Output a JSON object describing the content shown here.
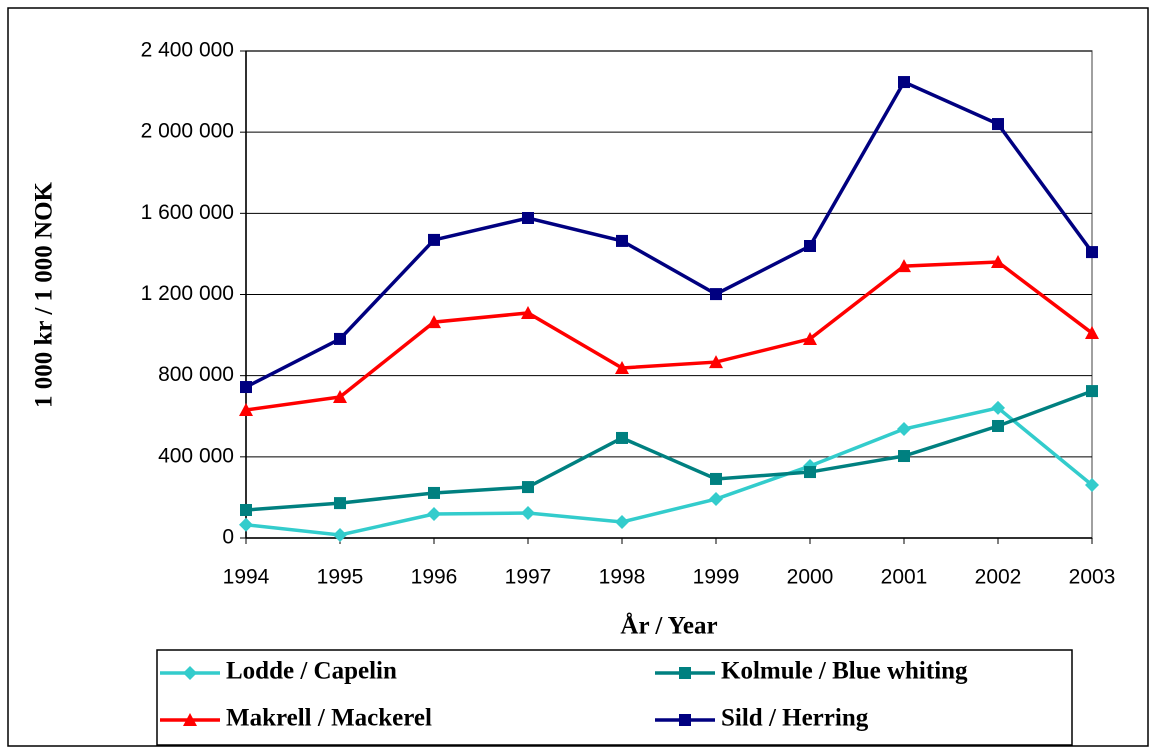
{
  "chart_data": {
    "type": "line",
    "x_label": "År / Year",
    "y_label": "1 000 kr / 1 000 NOK",
    "categories": [
      "1994",
      "1995",
      "1996",
      "1997",
      "1998",
      "1999",
      "2000",
      "2001",
      "2002",
      "2003"
    ],
    "series": [
      {
        "name": "Lodde / Capelin",
        "color": "#33cccc",
        "marker": "diamond",
        "values": [
          65000,
          15000,
          118000,
          123000,
          79000,
          192000,
          355000,
          537000,
          641000,
          261000
        ]
      },
      {
        "name": "Kolmule / Blue whiting",
        "color": "#008080",
        "marker": "square",
        "values": [
          138000,
          172000,
          222000,
          251000,
          493000,
          291000,
          325000,
          404000,
          552000,
          724000
        ]
      },
      {
        "name": "Makrell / Mackerel",
        "color": "#ff0000",
        "marker": "triangle",
        "values": [
          631000,
          695000,
          1064000,
          1109000,
          838000,
          867000,
          981000,
          1340000,
          1360000,
          1010000
        ]
      },
      {
        "name": "Sild / Herring",
        "color": "#000080",
        "marker": "square",
        "values": [
          744000,
          981000,
          1469000,
          1577000,
          1464000,
          1202000,
          1439000,
          2247000,
          2040000,
          1409000
        ]
      }
    ],
    "ylim": [
      0,
      2400000
    ],
    "yticks": [
      0,
      {
        "value": 400000,
        "label": "400 000"
      },
      {
        "value": 800000,
        "label": "800 000"
      },
      {
        "value": 1200000,
        "label": "1 200 000"
      },
      {
        "value": 1600000,
        "label": "1 600 000"
      },
      {
        "value": 2000000,
        "label": "2 000 000"
      },
      {
        "value": 2400000,
        "label": "2 400 000"
      }
    ],
    "grid": true,
    "legend": "bottom"
  }
}
